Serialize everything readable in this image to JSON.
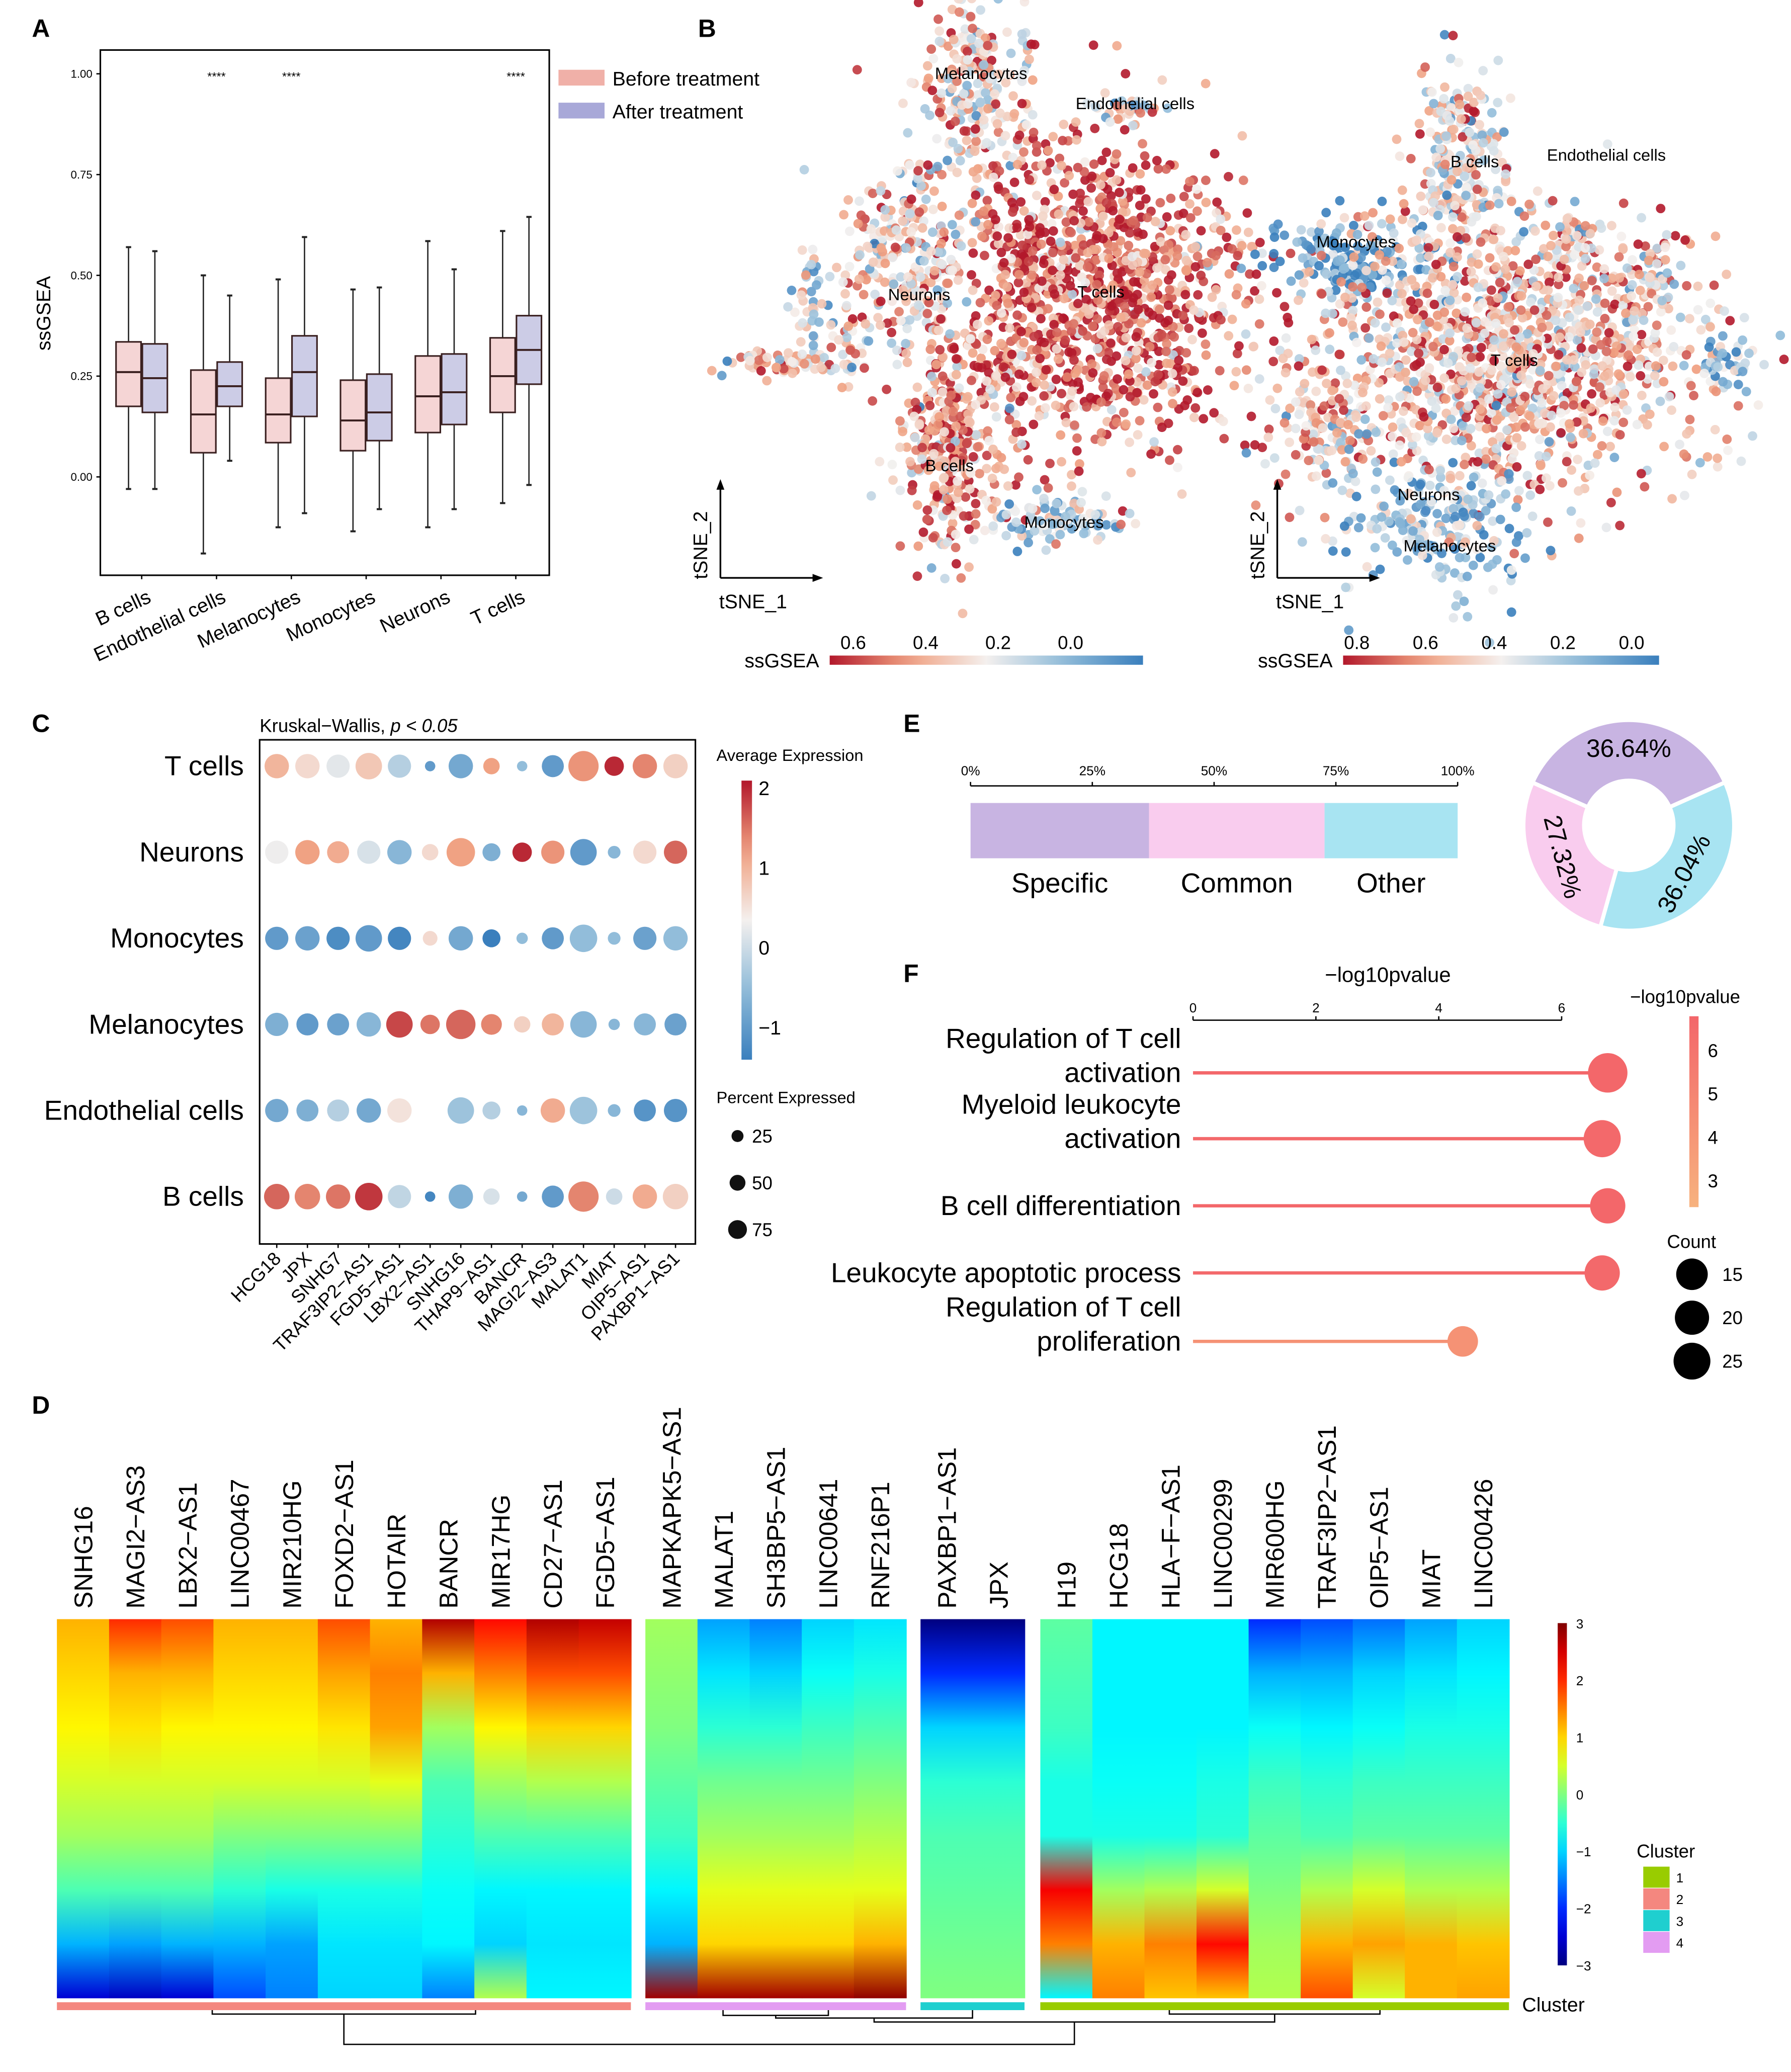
{
  "panel_labels": {
    "A": "A",
    "B": "B",
    "C": "C",
    "D": "D",
    "E": "E",
    "F": "F"
  },
  "chart_data": [
    {
      "id": "A",
      "type": "box",
      "ylabel": "ssGSEA",
      "ylim": [
        -0.244,
        1.059
      ],
      "yticks": [
        "0.00",
        "0.25",
        "0.50",
        "0.75",
        "1.00"
      ],
      "legend": [
        "Before treatment",
        "After treatment"
      ],
      "legend_placement": "right",
      "colors": {
        "before": "#f5d5d5",
        "after": "#ccccE6",
        "before_key": "#f0b0a8",
        "after_key": "#a8a8d8"
      },
      "categories": [
        "B cells",
        "Endothelial cells",
        "Melanocytes",
        "Monocytes",
        "Neurons",
        "T cells"
      ],
      "significance": [
        "",
        "****",
        "****",
        "",
        "",
        "****"
      ],
      "stats_order": [
        "min",
        "q1",
        "median",
        "q3",
        "max"
      ],
      "before": [
        [
          -0.03,
          0.175,
          0.26,
          0.335,
          0.57
        ],
        [
          -0.19,
          0.06,
          0.155,
          0.265,
          0.5
        ],
        [
          -0.125,
          0.085,
          0.155,
          0.245,
          0.49
        ],
        [
          -0.135,
          0.065,
          0.14,
          0.24,
          0.465
        ],
        [
          -0.125,
          0.11,
          0.2,
          0.3,
          0.585
        ],
        [
          -0.065,
          0.16,
          0.25,
          0.345,
          0.61
        ]
      ],
      "after": [
        [
          -0.03,
          0.16,
          0.245,
          0.33,
          0.56
        ],
        [
          0.04,
          0.175,
          0.225,
          0.285,
          0.45
        ],
        [
          -0.09,
          0.15,
          0.26,
          0.35,
          0.595
        ],
        [
          -0.08,
          0.09,
          0.16,
          0.255,
          0.47
        ],
        [
          -0.08,
          0.13,
          0.21,
          0.305,
          0.515
        ],
        [
          -0.02,
          0.23,
          0.315,
          0.4,
          0.645
        ]
      ]
    },
    {
      "id": "B",
      "type": "scatter",
      "xlabel": "tSNE_1",
      "ylabel": "tSNE_2",
      "plots": [
        {
          "name": "before",
          "colorbar_title": "ssGSEA",
          "colorbar_ticks": [
            "0.6",
            "0.4",
            "0.2",
            "0.0"
          ],
          "range": [
            0.665,
            -0.2
          ],
          "clusters": [
            "Melanocytes",
            "Endothelial cells",
            "Neurons",
            "T cells",
            "B cells",
            "Monocytes"
          ]
        },
        {
          "name": "after",
          "colorbar_title": "ssGSEA",
          "colorbar_ticks": [
            "0.8",
            "0.6",
            "0.4",
            "0.2",
            "0.0"
          ],
          "range": [
            0.84,
            -0.08
          ],
          "clusters": [
            "B cells",
            "Endothelial cells",
            "Monocytes",
            "T cells",
            "Neurons",
            "Melanocytes"
          ]
        }
      ]
    },
    {
      "id": "C",
      "type": "dot",
      "title": "Kruskal−Wallis, ",
      "title_p": "p < 0.05",
      "rows": [
        "T cells",
        "Neurons",
        "Monocytes",
        "Melanocytes",
        "Endothelial cells",
        "B cells"
      ],
      "genes": [
        "HCG18",
        "JPX",
        "SNHG7",
        "TRAF3IP2−AS1",
        "FGD5−AS1",
        "LBX2−AS1",
        "SNHG16",
        "THAP9−AS1",
        "BANCR",
        "MAGI2−AS3",
        "MALAT1",
        "MIAT",
        "OIP5−AS1",
        "PAXBP1−AS1"
      ],
      "avg_expression": [
        [
          1.0,
          0.6,
          0.2,
          0.8,
          -0.2,
          -1.0,
          -0.8,
          1.2,
          -0.5,
          -1.0,
          1.3,
          2.0,
          1.4,
          0.7
        ],
        [
          0.3,
          1.2,
          1.1,
          0.1,
          -0.6,
          0.6,
          1.2,
          -0.7,
          2.0,
          1.3,
          -1.0,
          -0.6,
          0.6,
          1.6
        ],
        [
          -1.0,
          -0.9,
          -1.2,
          -1.0,
          -1.3,
          0.6,
          -0.8,
          -1.4,
          -0.5,
          -1.0,
          -0.5,
          -0.5,
          -0.9,
          -0.5
        ],
        [
          -0.7,
          -1.0,
          -0.9,
          -0.6,
          1.8,
          1.5,
          1.6,
          1.4,
          0.7,
          1.0,
          -0.6,
          -0.6,
          -0.6,
          -0.9
        ],
        [
          -0.8,
          -0.7,
          -0.2,
          -0.8,
          0.5,
          0,
          -0.4,
          -0.2,
          -0.6,
          1.1,
          -0.4,
          -0.6,
          -1.1,
          -1.1
        ],
        [
          1.6,
          1.4,
          1.5,
          1.9,
          -0.1,
          -1.3,
          -0.7,
          0.1,
          -0.8,
          -1.0,
          1.4,
          0.0,
          1.1,
          0.7
        ]
      ],
      "pct_expressed": [
        [
          55,
          55,
          50,
          65,
          50,
          10,
          55,
          25,
          10,
          45,
          85,
          35,
          55,
          55
        ],
        [
          50,
          55,
          45,
          50,
          55,
          25,
          75,
          30,
          35,
          50,
          65,
          15,
          50,
          50
        ],
        [
          50,
          55,
          50,
          65,
          50,
          20,
          55,
          30,
          12,
          45,
          70,
          15,
          50,
          55
        ],
        [
          50,
          45,
          45,
          55,
          65,
          35,
          80,
          40,
          25,
          45,
          65,
          12,
          45,
          45
        ],
        [
          50,
          45,
          45,
          55,
          55,
          0,
          65,
          30,
          10,
          55,
          70,
          15,
          45,
          50
        ],
        [
          60,
          60,
          55,
          70,
          50,
          10,
          55,
          25,
          10,
          45,
          85,
          25,
          55,
          60
        ]
      ],
      "color_legend_title": "Average Expression",
      "color_ticks": [
        "2",
        "1",
        "0",
        "−1"
      ],
      "color_range": [
        -1.4,
        2.1
      ],
      "size_legend_title": "Percent Expressed",
      "size_ticks": [
        "25",
        "50",
        "75"
      ]
    },
    {
      "id": "D",
      "type": "heatmap",
      "value_range": [
        -3,
        3
      ],
      "colorbar_ticks": [
        "3",
        "2",
        "1",
        "0",
        "−1",
        "−2",
        "−3"
      ],
      "cluster_legend_title": "Cluster",
      "cluster_row_label": "Cluster",
      "clusters": [
        {
          "label": "1",
          "color": "#99cc00"
        },
        {
          "label": "2",
          "color": "#f4877f"
        },
        {
          "label": "3",
          "color": "#1fcfcf"
        },
        {
          "label": "4",
          "color": "#e39cf2"
        }
      ],
      "groups": [
        {
          "cluster": "2",
          "genes": [
            {
              "name": "SNHG16",
              "profile": [
                1.2,
                1,
                0.8,
                0.5,
                0.2,
                -0.3,
                -1.2,
                -2.5
              ]
            },
            {
              "name": "MAGI2−AS3",
              "profile": [
                2,
                1.2,
                0.9,
                0.5,
                0.2,
                -0.3,
                -1.3,
                -2.6
              ]
            },
            {
              "name": "LBX2−AS1",
              "profile": [
                1.8,
                1.2,
                0.8,
                0.5,
                0.2,
                -0.3,
                -1.2,
                -2.5
              ]
            },
            {
              "name": "LINC00467",
              "profile": [
                1.2,
                1,
                0.8,
                0.5,
                0,
                -0.5,
                -1.2,
                -1.8
              ]
            },
            {
              "name": "MIR210HG",
              "profile": [
                1.2,
                1,
                0.8,
                0.5,
                0,
                -0.6,
                -1.3,
                -1.5
              ]
            },
            {
              "name": "FOXD2−AS1",
              "profile": [
                1.8,
                1.3,
                0.9,
                0.5,
                0,
                -0.6,
                -0.9,
                -1
              ]
            },
            {
              "name": "HOTAIR",
              "profile": [
                1.2,
                1.5,
                1.3,
                0.6,
                0,
                -0.6,
                -0.9,
                -1
              ]
            },
            {
              "name": "BANCR",
              "profile": [
                2.7,
                1.2,
                0.2,
                -0.3,
                -0.5,
                -0.7,
                -0.8,
                -1.5
              ]
            },
            {
              "name": "MIR17HG",
              "profile": [
                2.2,
                1.5,
                0.8,
                0.2,
                -0.3,
                -0.8,
                -1,
                0.3
              ]
            },
            {
              "name": "CD27−AS1",
              "profile": [
                2.7,
                1.8,
                1,
                0.3,
                -0.3,
                -0.8,
                -0.9,
                -0.8
              ]
            },
            {
              "name": "FGD5−AS1",
              "profile": [
                2.6,
                1.8,
                1,
                0.3,
                -0.3,
                -0.8,
                -0.9,
                -0.8
              ]
            }
          ]
        },
        {
          "cluster": "4",
          "genes": [
            {
              "name": "MAPKAPK5−AS1",
              "profile": [
                0.2,
                0.1,
                0,
                -0.2,
                -0.4,
                -0.8,
                -1.2,
                2.8
              ]
            },
            {
              "name": "MALAT1",
              "profile": [
                -1.3,
                -0.9,
                -0.5,
                -0.1,
                0.2,
                0.6,
                1,
                2.8
              ]
            },
            {
              "name": "SH3BP5−AS1",
              "profile": [
                -1.5,
                -1,
                -0.5,
                -0.1,
                0.2,
                0.6,
                1,
                2.8
              ]
            },
            {
              "name": "LINC00641",
              "profile": [
                -1,
                -0.7,
                -0.4,
                -0.1,
                0.2,
                0.6,
                1,
                2.8
              ]
            },
            {
              "name": "RNF216P1",
              "profile": [
                -0.9,
                -0.6,
                -0.3,
                0,
                0.3,
                0.6,
                1.2,
                2.9
              ]
            }
          ]
        },
        {
          "cluster": "3",
          "genes": [
            {
              "name": "PAXBP1−AS1",
              "profile": [
                -3,
                -2,
                -1,
                -0.5,
                -0.3,
                -0.2,
                -0.1,
                0
              ]
            },
            {
              "name": "JPX",
              "profile": [
                -3,
                -2,
                -1,
                -0.5,
                -0.3,
                -0.2,
                -0.1,
                0
              ]
            }
          ]
        },
        {
          "cluster": "1",
          "genes": [
            {
              "name": "H19",
              "profile": [
                -0.2,
                -0.3,
                -0.4,
                -0.6,
                -0.6,
                2.3,
                1.5,
                -0.8
              ]
            },
            {
              "name": "HCG18",
              "profile": [
                -0.8,
                -0.8,
                -0.8,
                -0.7,
                -0.6,
                0.2,
                1.2,
                1.5
              ]
            },
            {
              "name": "HLA−F−AS1",
              "profile": [
                -0.8,
                -0.8,
                -0.8,
                -0.7,
                -0.6,
                0.3,
                1.5,
                1.1
              ]
            },
            {
              "name": "LINC00299",
              "profile": [
                -0.8,
                -0.8,
                -0.8,
                -0.6,
                -0.5,
                0.5,
                2.2,
                1.1
              ]
            },
            {
              "name": "MIR600HG",
              "profile": [
                -2,
                -1.2,
                -0.7,
                -0.4,
                -0.2,
                0,
                0.2,
                0.3
              ]
            },
            {
              "name": "TRAF3IP2−AS1",
              "profile": [
                -1.8,
                -1.2,
                -0.8,
                -0.5,
                -0.3,
                0.3,
                1.2,
                1.8
              ]
            },
            {
              "name": "OIP5−AS1",
              "profile": [
                -1.6,
                -1,
                -0.7,
                -0.4,
                -0.2,
                0.5,
                1.3,
                0.5
              ]
            },
            {
              "name": "MIAT",
              "profile": [
                -1.3,
                -0.9,
                -0.6,
                -0.4,
                -0.2,
                0.3,
                1.2,
                1.2
              ]
            },
            {
              "name": "LINC00426",
              "profile": [
                -1,
                -0.8,
                -0.6,
                -0.4,
                -0.2,
                0.3,
                1.1,
                1.3
              ]
            }
          ]
        }
      ]
    },
    {
      "id": "E",
      "type": "bar+pie",
      "bar_ticks": [
        "0%",
        "25%",
        "50%",
        "75%",
        "100%"
      ],
      "bar_segments": [
        {
          "label": "Specific",
          "value": 36.64,
          "color": "#c8b4e2"
        },
        {
          "label": "Common",
          "value": 36.04,
          "color": "#f9ccee"
        },
        {
          "label": "Other",
          "value": 27.32,
          "color": "#a8e4f2"
        }
      ],
      "pie": [
        {
          "label": "36.64%",
          "value": 36.64,
          "color": "#c8b4e2"
        },
        {
          "label": "36.04%",
          "value": 36.04,
          "color": "#a8e4f2"
        },
        {
          "label": "27.32%",
          "value": 27.32,
          "color": "#f9ccee"
        }
      ]
    },
    {
      "id": "F",
      "type": "lollipop",
      "xlabel": "−log10pvalue",
      "xlim": [
        0,
        6
      ],
      "xticks": [
        "0",
        "2",
        "4",
        "6"
      ],
      "terms": [
        {
          "lines": [
            "Regulation of T cell",
            "activation"
          ],
          "value": 6.75,
          "count": 25
        },
        {
          "lines": [
            "Myeloid leukocyte",
            "activation"
          ],
          "value": 6.66,
          "count": 22
        },
        {
          "lines": [
            "B cell differentiation"
          ],
          "value": 6.75,
          "count": 20
        },
        {
          "lines": [
            "Leukocyte apoptotic process"
          ],
          "value": 6.66,
          "count": 20
        },
        {
          "lines": [
            "Regulation of T cell",
            "proliferation"
          ],
          "value": 4.39,
          "count": 15
        }
      ],
      "color_legend_title": "−log10pvalue",
      "color_ticks": [
        "6",
        "5",
        "4",
        "3"
      ],
      "color_range": [
        2.6,
        6.8
      ],
      "size_legend_title": "Count",
      "size_ticks": [
        "15",
        "20",
        "25"
      ]
    }
  ]
}
